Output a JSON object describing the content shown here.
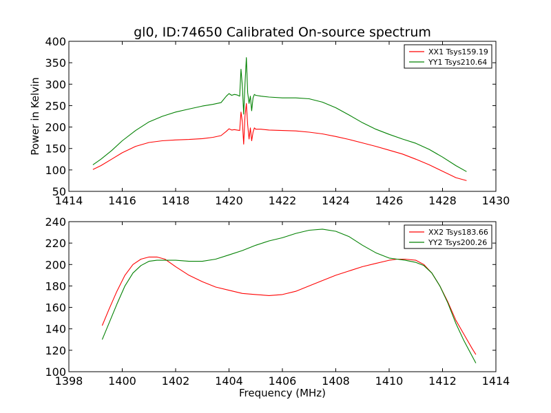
{
  "figure": {
    "title": "gl0, ID:74650 Calibrated On-source spectrum"
  },
  "chart_data": [
    {
      "type": "line",
      "ylabel": "Power in Kelvin",
      "xlabel": "",
      "xlim": [
        1414,
        1430
      ],
      "ylim": [
        50,
        400
      ],
      "xticks": [
        1414,
        1416,
        1418,
        1420,
        1422,
        1424,
        1426,
        1428,
        1430
      ],
      "yticks": [
        50,
        100,
        150,
        200,
        250,
        300,
        350,
        400
      ],
      "grid": false,
      "legend": "top-right",
      "series": [
        {
          "name": "XX1 Tsys159.19",
          "color": "#ff0000",
          "x": [
            1414.9,
            1415.2,
            1415.6,
            1416.0,
            1416.5,
            1417.0,
            1417.5,
            1418.0,
            1418.5,
            1419.0,
            1419.4,
            1419.7,
            1419.9,
            1420.0,
            1420.1,
            1420.2,
            1420.3,
            1420.4,
            1420.45,
            1420.5,
            1420.55,
            1420.6,
            1420.65,
            1420.7,
            1420.75,
            1420.8,
            1420.85,
            1420.9,
            1420.95,
            1421.0,
            1421.2,
            1421.5,
            1422.0,
            1422.5,
            1423.0,
            1423.5,
            1424.0,
            1424.5,
            1425.0,
            1425.5,
            1426.0,
            1426.5,
            1427.0,
            1427.5,
            1428.0,
            1428.5,
            1428.9
          ],
          "y": [
            101,
            110,
            125,
            140,
            155,
            164,
            168,
            170,
            171,
            173,
            176,
            180,
            190,
            196,
            193,
            194,
            193,
            192,
            235,
            212,
            160,
            225,
            255,
            205,
            172,
            198,
            168,
            188,
            198,
            195,
            195,
            193,
            192,
            191,
            188,
            184,
            178,
            171,
            163,
            155,
            146,
            137,
            125,
            112,
            97,
            82,
            75
          ]
        },
        {
          "name": "YY1 Tsys210.64",
          "color": "#008000",
          "x": [
            1414.9,
            1415.2,
            1415.6,
            1416.0,
            1416.5,
            1417.0,
            1417.5,
            1418.0,
            1418.5,
            1419.0,
            1419.4,
            1419.7,
            1419.9,
            1420.0,
            1420.1,
            1420.2,
            1420.3,
            1420.4,
            1420.45,
            1420.5,
            1420.55,
            1420.6,
            1420.65,
            1420.7,
            1420.75,
            1420.8,
            1420.85,
            1420.9,
            1420.95,
            1421.0,
            1421.2,
            1421.5,
            1422.0,
            1422.5,
            1423.0,
            1423.5,
            1424.0,
            1424.5,
            1425.0,
            1425.5,
            1426.0,
            1426.5,
            1427.0,
            1427.5,
            1428.0,
            1428.5,
            1428.9
          ],
          "y": [
            112,
            125,
            145,
            168,
            192,
            212,
            225,
            235,
            242,
            249,
            253,
            257,
            272,
            278,
            274,
            276,
            275,
            272,
            335,
            295,
            230,
            300,
            362,
            280,
            255,
            272,
            238,
            268,
            276,
            274,
            272,
            270,
            268,
            268,
            266,
            258,
            245,
            228,
            210,
            195,
            183,
            172,
            162,
            148,
            130,
            110,
            96
          ]
        }
      ]
    },
    {
      "type": "line",
      "ylabel": "",
      "xlabel": "Frequency (MHz)",
      "xlim": [
        1398,
        1414
      ],
      "ylim": [
        100,
        240
      ],
      "xticks": [
        1398,
        1400,
        1402,
        1404,
        1406,
        1408,
        1410,
        1412,
        1414
      ],
      "yticks": [
        100,
        120,
        140,
        160,
        180,
        200,
        220,
        240
      ],
      "grid": false,
      "legend": "top-right",
      "series": [
        {
          "name": "XX2 Tsys183.66",
          "color": "#ff0000",
          "x": [
            1399.25,
            1399.5,
            1399.8,
            1400.1,
            1400.4,
            1400.7,
            1401.0,
            1401.3,
            1401.6,
            1402.0,
            1402.5,
            1403.0,
            1403.5,
            1404.0,
            1404.5,
            1405.0,
            1405.5,
            1406.0,
            1406.5,
            1407.0,
            1407.5,
            1408.0,
            1408.5,
            1409.0,
            1409.5,
            1410.0,
            1410.3,
            1410.6,
            1411.0,
            1411.3,
            1411.6,
            1411.9,
            1412.2,
            1412.5,
            1412.8,
            1413.1,
            1413.25
          ],
          "y": [
            143,
            158,
            175,
            190,
            200,
            205,
            207,
            207,
            205,
            198,
            190,
            184,
            179,
            176,
            173,
            172,
            171,
            172,
            175,
            180,
            185,
            190,
            194,
            198,
            201,
            204,
            205,
            205,
            204,
            200,
            192,
            180,
            165,
            148,
            135,
            122,
            116
          ]
        },
        {
          "name": "YY2 Tsys200.26",
          "color": "#008000",
          "x": [
            1399.25,
            1399.5,
            1399.8,
            1400.1,
            1400.4,
            1400.7,
            1401.0,
            1401.3,
            1401.6,
            1402.0,
            1402.5,
            1403.0,
            1403.5,
            1404.0,
            1404.5,
            1405.0,
            1405.5,
            1406.0,
            1406.5,
            1407.0,
            1407.5,
            1408.0,
            1408.5,
            1409.0,
            1409.5,
            1410.0,
            1410.3,
            1410.6,
            1411.0,
            1411.3,
            1411.6,
            1411.9,
            1412.2,
            1412.5,
            1412.8,
            1413.1,
            1413.25
          ],
          "y": [
            130,
            145,
            163,
            180,
            192,
            199,
            203,
            204,
            204,
            204,
            203,
            203,
            205,
            209,
            213,
            218,
            222,
            225,
            229,
            232,
            233,
            231,
            226,
            218,
            211,
            206,
            205,
            204,
            202,
            199,
            192,
            180,
            164,
            145,
            129,
            115,
            108
          ]
        }
      ]
    }
  ]
}
